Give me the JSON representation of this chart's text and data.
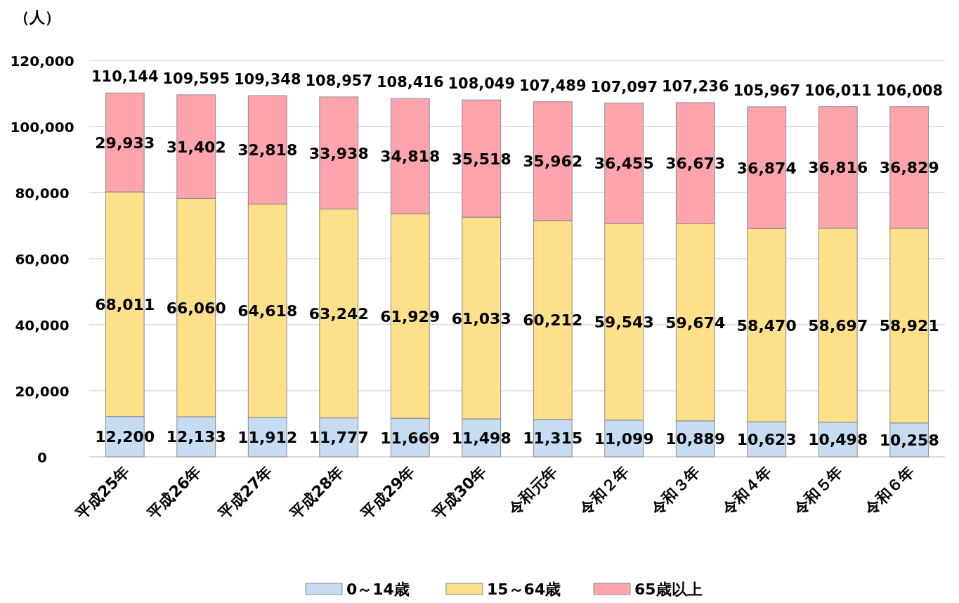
{
  "chart_data": {
    "type": "bar",
    "stacked": true,
    "ylabel": "（人）",
    "categories": [
      "平成25年",
      "平成26年",
      "平成27年",
      "平成28年",
      "平成29年",
      "平成30年",
      "令和元年",
      "令和２年",
      "令和３年",
      "令和４年",
      "令和５年",
      "令和６年"
    ],
    "series": [
      {
        "name": "0～14歳",
        "color": "#c5dcf2",
        "values": [
          12200,
          12133,
          11912,
          11777,
          11669,
          11498,
          11315,
          11099,
          10889,
          10623,
          10498,
          10258
        ],
        "value_labels": [
          "12,200",
          "12,133",
          "11,912",
          "11,777",
          "11,669",
          "11,498",
          "11,315",
          "11,099",
          "10,889",
          "10,623",
          "10,498",
          "10,258"
        ]
      },
      {
        "name": "15～64歳",
        "color": "#ffe08a",
        "values": [
          68011,
          66060,
          64618,
          63242,
          61929,
          61033,
          60212,
          59543,
          59674,
          58470,
          58697,
          58921
        ],
        "value_labels": [
          "68,011",
          "66,060",
          "64,618",
          "63,242",
          "61,929",
          "61,033",
          "60,212",
          "59,543",
          "59,674",
          "58,470",
          "58,697",
          "58,921"
        ]
      },
      {
        "name": "65歳以上",
        "color": "#ffa3ad",
        "values": [
          29933,
          31402,
          32818,
          33938,
          34818,
          35518,
          35962,
          36455,
          36673,
          36874,
          36816,
          36829
        ],
        "value_labels": [
          "29,933",
          "31,402",
          "32,818",
          "33,938",
          "34,818",
          "35,518",
          "35,962",
          "36,455",
          "36,673",
          "36,874",
          "36,816",
          "36,829"
        ]
      }
    ],
    "totals": [
      "110,144",
      "109,595",
      "109,348",
      "108,957",
      "108,416",
      "108,049",
      "107,489",
      "107,097",
      "107,236",
      "105,967",
      "106,011",
      "106,008"
    ],
    "ylim": [
      0,
      120000
    ],
    "yticks": [
      {
        "value": 0,
        "label": "0"
      },
      {
        "value": 20000,
        "label": "20,000"
      },
      {
        "value": 40000,
        "label": "40,000"
      },
      {
        "value": 60000,
        "label": "60,000"
      },
      {
        "value": 80000,
        "label": "80,000"
      },
      {
        "value": 100000,
        "label": "100,000"
      },
      {
        "value": 120000,
        "label": "120,000"
      }
    ],
    "grid": "y",
    "legend": "bottom"
  }
}
